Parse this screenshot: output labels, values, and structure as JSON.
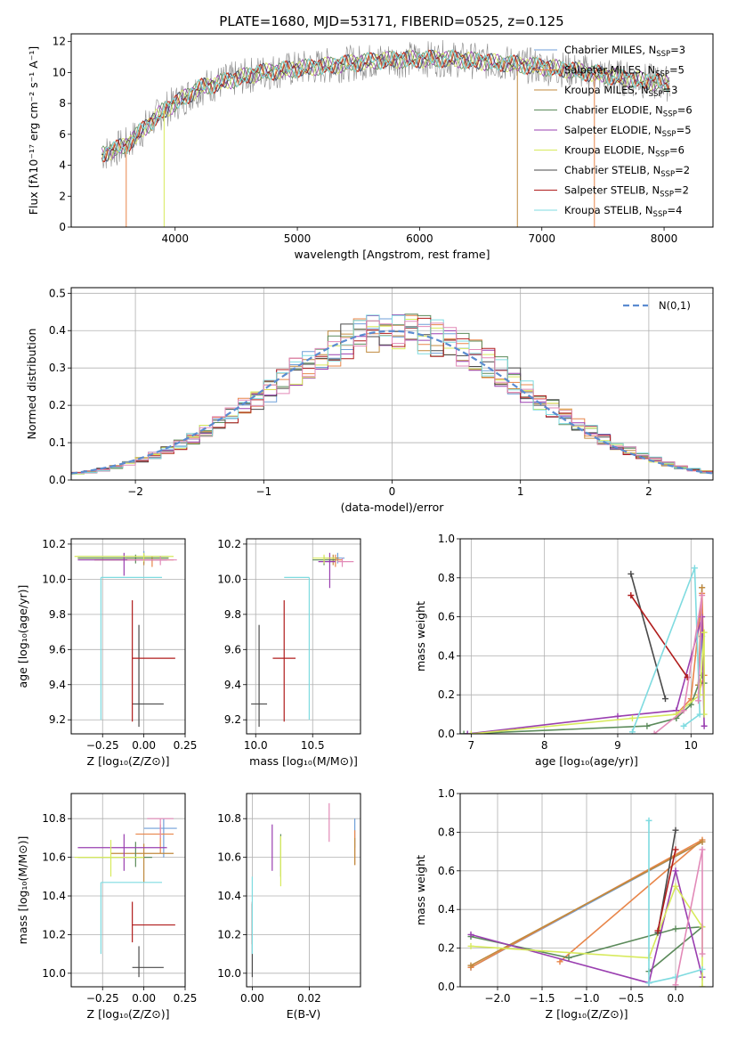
{
  "title": "PLATE=1680, MJD=53171, FIBERID=0525, z=0.125",
  "chart_data": [
    {
      "type": "line",
      "name": "spectrum",
      "xlabel": "wavelength [Angstrom, rest frame]",
      "ylabel": "Flux [fλ10⁻¹⁷ erg cm⁻² s⁻¹ A⁻¹]",
      "xlim": [
        3150,
        8400
      ],
      "ylim": [
        0,
        12.5
      ],
      "xticks": [
        4000,
        5000,
        6000,
        7000,
        8000
      ],
      "yticks": [
        0,
        2,
        4,
        6,
        8,
        10,
        12
      ],
      "continuum": {
        "x": [
          3400,
          3600,
          3900,
          4200,
          4700,
          5200,
          5700,
          6200,
          6700,
          7200,
          7700,
          8000
        ],
        "y": [
          4.7,
          5.3,
          7.5,
          9.0,
          10.0,
          10.4,
          10.8,
          10.9,
          10.6,
          10.2,
          9.6,
          9.3
        ]
      },
      "glitches": [
        {
          "x": 3600,
          "y": 0
        },
        {
          "x": 3910,
          "y": 0
        },
        {
          "x": 6800,
          "y": 0
        },
        {
          "x": 7430,
          "y": 0
        }
      ],
      "series": [
        {
          "name": "Chabrier MILES, N",
          "sub": "SSP",
          "eq": "=3",
          "color": "#6f9fd8"
        },
        {
          "name": "Salpeter MILES, N",
          "sub": "SSP",
          "eq": "=5",
          "color": "#e8864a"
        },
        {
          "name": "Kroupa MILES, N",
          "sub": "SSP",
          "eq": "=3",
          "color": "#c08a3e"
        },
        {
          "name": "Chabrier ELODIE, N",
          "sub": "SSP",
          "eq": "=6",
          "color": "#5b8a5a"
        },
        {
          "name": "Salpeter ELODIE, N",
          "sub": "SSP",
          "eq": "=5",
          "color": "#9a3fb0"
        },
        {
          "name": "Kroupa ELODIE, N",
          "sub": "SSP",
          "eq": "=6",
          "color": "#d7ea5c"
        },
        {
          "name": "Chabrier STELIB, N",
          "sub": "SSP",
          "eq": "=2",
          "color": "#4a4a4a"
        },
        {
          "name": "Salpeter STELIB, N",
          "sub": "SSP",
          "eq": "=2",
          "color": "#b01c1c"
        },
        {
          "name": "Kroupa STELIB, N",
          "sub": "SSP",
          "eq": "=4",
          "color": "#7fdbe0"
        }
      ]
    },
    {
      "type": "line",
      "name": "residual-histogram",
      "xlabel": "(data-model)/error",
      "ylabel": "Normed distribution",
      "xlim": [
        -2.5,
        2.5
      ],
      "ylim": [
        0,
        0.515
      ],
      "xticks": [
        -2,
        -1,
        0,
        1,
        2
      ],
      "yticks": [
        0.0,
        0.1,
        0.2,
        0.3,
        0.4,
        0.5
      ],
      "legend": "N(0,1)",
      "legend_position": "top-right",
      "bin_width": 0.1,
      "hist_base": [
        0.018,
        0.022,
        0.028,
        0.035,
        0.044,
        0.054,
        0.066,
        0.079,
        0.094,
        0.11,
        0.13,
        0.15,
        0.171,
        0.194,
        0.218,
        0.242,
        0.266,
        0.29,
        0.312,
        0.333,
        0.352,
        0.368,
        0.382,
        0.392,
        0.398,
        0.4,
        0.398,
        0.392,
        0.382,
        0.368,
        0.352,
        0.333,
        0.312,
        0.29,
        0.266,
        0.242,
        0.218,
        0.194,
        0.171,
        0.15,
        0.13,
        0.11,
        0.094,
        0.079,
        0.066,
        0.054,
        0.044,
        0.035,
        0.028,
        0.022
      ]
    },
    {
      "type": "scatter",
      "name": "age-vs-Z",
      "xlabel": "Z [log₁₀(Z/Z⊙)]",
      "ylabel": "age  [log₁₀(age/yr)]",
      "xlim": [
        -0.44,
        0.25
      ],
      "ylim": [
        9.12,
        10.23
      ],
      "xticks": [
        -0.25,
        0.0,
        0.25
      ],
      "yticks": [
        9.2,
        9.4,
        9.6,
        9.8,
        10.0,
        10.2
      ],
      "points": [
        {
          "x": 0.0,
          "y": 10.13,
          "xl": 0.4,
          "xh": 0.15,
          "yl": 0.04,
          "yh": 0.03,
          "c": 0
        },
        {
          "x": 0.05,
          "y": 10.11,
          "xl": 0.35,
          "xh": 0.13,
          "yl": 0.04,
          "yh": 0.02,
          "c": 1
        },
        {
          "x": 0.0,
          "y": 10.12,
          "xl": 0.4,
          "xh": 0.15,
          "yl": 0.04,
          "yh": 0.02,
          "c": 2
        },
        {
          "x": -0.05,
          "y": 10.12,
          "xl": 0.35,
          "xh": 0.2,
          "yl": 0.03,
          "yh": 0.02,
          "c": 3
        },
        {
          "x": -0.12,
          "y": 10.11,
          "xl": 0.28,
          "xh": 0.26,
          "yl": 0.09,
          "yh": 0.04,
          "c": 4
        },
        {
          "x": 0.0,
          "y": 10.13,
          "xl": 0.42,
          "xh": 0.18,
          "yl": 0.03,
          "yh": 0.02,
          "c": 5
        },
        {
          "x": -0.03,
          "y": 9.29,
          "xl": 0.04,
          "xh": 0.15,
          "yl": 0.13,
          "yh": 0.45,
          "c": 6
        },
        {
          "x": -0.07,
          "y": 9.55,
          "xl": 0.0,
          "xh": 0.26,
          "yl": 0.36,
          "yh": 0.33,
          "c": 7
        },
        {
          "x": -0.26,
          "y": 10.01,
          "xl": 0.0,
          "xh": 0.37,
          "yl": 0.81,
          "yh": 0.0,
          "c": 8
        },
        {
          "x": 0.1,
          "y": 10.11,
          "xl": 0.2,
          "xh": 0.1,
          "yl": 0.03,
          "yh": 0.02,
          "c": 9
        }
      ]
    },
    {
      "type": "scatter",
      "name": "age-vs-mass",
      "xlabel": "mass [log₁₀(M/M⊙)]",
      "xlim": [
        9.92,
        10.92
      ],
      "ylim": [
        9.12,
        10.23
      ],
      "xticks": [
        10.0,
        10.5
      ],
      "yticks": [
        9.2,
        9.4,
        9.6,
        9.8,
        10.0,
        10.2
      ],
      "points": [
        {
          "x": 10.72,
          "y": 10.12,
          "xl": 0.1,
          "xh": 0.06,
          "yl": 0.03,
          "yh": 0.03,
          "c": 0
        },
        {
          "x": 10.7,
          "y": 10.11,
          "xl": 0.05,
          "xh": 0.06,
          "yl": 0.04,
          "yh": 0.03,
          "c": 1
        },
        {
          "x": 10.68,
          "y": 10.12,
          "xl": 0.08,
          "xh": 0.05,
          "yl": 0.04,
          "yh": 0.02,
          "c": 2
        },
        {
          "x": 10.6,
          "y": 10.11,
          "xl": 0.1,
          "xh": 0.1,
          "yl": 0.03,
          "yh": 0.02,
          "c": 3
        },
        {
          "x": 10.65,
          "y": 10.1,
          "xl": 0.1,
          "xh": 0.05,
          "yl": 0.15,
          "yh": 0.05,
          "c": 4
        },
        {
          "x": 10.6,
          "y": 10.12,
          "xl": 0.1,
          "xh": 0.1,
          "yl": 0.03,
          "yh": 0.02,
          "c": 5
        },
        {
          "x": 10.03,
          "y": 9.29,
          "xl": 0.07,
          "xh": 0.07,
          "yl": 0.13,
          "yh": 0.45,
          "c": 6
        },
        {
          "x": 10.25,
          "y": 9.55,
          "xl": 0.1,
          "xh": 0.1,
          "yl": 0.36,
          "yh": 0.33,
          "c": 7
        },
        {
          "x": 10.47,
          "y": 10.01,
          "xl": 0.22,
          "xh": 0.0,
          "yl": 0.81,
          "yh": 0.0,
          "c": 8
        },
        {
          "x": 10.76,
          "y": 10.1,
          "xl": 0.04,
          "xh": 0.1,
          "yl": 0.03,
          "yh": 0.02,
          "c": 9
        }
      ]
    },
    {
      "type": "line",
      "name": "mass-weight-vs-age",
      "xlabel": "age  [log₁₀(age/yr)]",
      "ylabel": "mass weight",
      "xlim": [
        6.85,
        10.3
      ],
      "ylim": [
        0,
        1.0
      ],
      "xticks": [
        7,
        8,
        9,
        10
      ],
      "yticks": [
        0.0,
        0.2,
        0.4,
        0.6,
        0.8,
        1.0
      ],
      "lines": [
        {
          "c": 0,
          "x": [
            10.15,
            10.15,
            10.1
          ],
          "y": [
            0.75,
            0.5,
            0.25
          ]
        },
        {
          "c": 1,
          "x": [
            9.8,
            10.0,
            10.15,
            10.18,
            10.1
          ],
          "y": [
            0.1,
            0.18,
            0.72,
            0.3,
            0.2
          ]
        },
        {
          "c": 2,
          "x": [
            10.15,
            10.1
          ],
          "y": [
            0.75,
            0.25
          ]
        },
        {
          "c": 3,
          "x": [
            6.9,
            9.4,
            9.8,
            10.0,
            10.15,
            10.18
          ],
          "y": [
            0.0,
            0.04,
            0.08,
            0.15,
            0.3,
            0.26
          ]
        },
        {
          "c": 4,
          "x": [
            6.95,
            9.0,
            9.8,
            10.15,
            10.18
          ],
          "y": [
            0.0,
            0.09,
            0.12,
            0.6,
            0.04
          ]
        },
        {
          "c": 5,
          "x": [
            7.0,
            9.2,
            9.8,
            10.12,
            10.18,
            10.18
          ],
          "y": [
            0.0,
            0.08,
            0.1,
            0.2,
            0.52,
            0.1
          ]
        },
        {
          "c": 6,
          "x": [
            9.18,
            9.65
          ],
          "y": [
            0.82,
            0.18
          ]
        },
        {
          "c": 7,
          "x": [
            9.18,
            9.95
          ],
          "y": [
            0.71,
            0.29
          ]
        },
        {
          "c": 8,
          "x": [
            9.2,
            10.05,
            10.12,
            9.9
          ],
          "y": [
            0.01,
            0.85,
            0.1,
            0.04
          ]
        },
        {
          "c": 9,
          "x": [
            9.5,
            9.9,
            10.15,
            10.1
          ],
          "y": [
            0.0,
            0.12,
            0.71,
            0.17
          ]
        }
      ]
    },
    {
      "type": "scatter",
      "name": "mass-vs-Z",
      "xlabel": "Z [log₁₀(Z/Z⊙)]",
      "ylabel": "mass [log₁₀(M/M⊙)]",
      "xlim": [
        -0.44,
        0.25
      ],
      "ylim": [
        9.93,
        10.93
      ],
      "xticks": [
        -0.25,
        0.0,
        0.25
      ],
      "yticks": [
        10.0,
        10.2,
        10.4,
        10.6,
        10.8
      ],
      "points": [
        {
          "x": 0.12,
          "y": 10.75,
          "xl": 0.12,
          "xh": 0.08,
          "yl": 0.15,
          "yh": 0.05,
          "c": 0
        },
        {
          "x": 0.1,
          "y": 10.72,
          "xl": 0.15,
          "xh": 0.08,
          "yl": 0.1,
          "yh": 0.05,
          "c": 1
        },
        {
          "x": 0.0,
          "y": 10.62,
          "xl": 0.2,
          "xh": 0.18,
          "yl": 0.15,
          "yh": 0.05,
          "c": 2
        },
        {
          "x": -0.05,
          "y": 10.6,
          "xl": 0.35,
          "xh": 0.1,
          "yl": 0.05,
          "yh": 0.08,
          "c": 3
        },
        {
          "x": -0.12,
          "y": 10.65,
          "xl": 0.28,
          "xh": 0.26,
          "yl": 0.12,
          "yh": 0.07,
          "c": 4
        },
        {
          "x": -0.2,
          "y": 10.6,
          "xl": 0.22,
          "xh": 0.2,
          "yl": 0.1,
          "yh": 0.09,
          "c": 5
        },
        {
          "x": -0.03,
          "y": 10.03,
          "xl": 0.04,
          "xh": 0.15,
          "yl": 0.05,
          "yh": 0.11,
          "c": 6
        },
        {
          "x": -0.07,
          "y": 10.25,
          "xl": 0.0,
          "xh": 0.26,
          "yl": 0.09,
          "yh": 0.12,
          "c": 7
        },
        {
          "x": -0.26,
          "y": 10.47,
          "xl": 0.0,
          "xh": 0.37,
          "yl": 0.37,
          "yh": 0.0,
          "c": 8
        },
        {
          "x": 0.1,
          "y": 10.8,
          "xl": 0.08,
          "xh": 0.08,
          "yl": 0.1,
          "yh": 0.0,
          "c": 9
        }
      ]
    },
    {
      "type": "scatter",
      "name": "mass-vs-EBV",
      "xlabel": "E(B-V)",
      "xlim": [
        -0.002,
        0.038
      ],
      "ylim": [
        9.93,
        10.93
      ],
      "xticks": [
        0.0,
        0.02
      ],
      "yticks": [
        10.0,
        10.2,
        10.4,
        10.6,
        10.8
      ],
      "points": [
        {
          "x": 0.036,
          "y": 10.75,
          "xl": 0,
          "xh": 0,
          "yl": 0.1,
          "yh": 0.05,
          "c": 0
        },
        {
          "x": 0.036,
          "y": 10.66,
          "xl": 0,
          "xh": 0,
          "yl": 0.1,
          "yh": 0.08,
          "c": 1
        },
        {
          "x": 0.036,
          "y": 10.64,
          "xl": 0,
          "xh": 0,
          "yl": 0.08,
          "yh": 0.06,
          "c": 2
        },
        {
          "x": 0.01,
          "y": 10.62,
          "xl": 0,
          "xh": 0,
          "yl": 0.12,
          "yh": 0.1,
          "c": 3
        },
        {
          "x": 0.007,
          "y": 10.65,
          "xl": 0,
          "xh": 0,
          "yl": 0.12,
          "yh": 0.12,
          "c": 4
        },
        {
          "x": 0.01,
          "y": 10.55,
          "xl": 0,
          "xh": 0,
          "yl": 0.1,
          "yh": 0.16,
          "c": 5
        },
        {
          "x": 0.0,
          "y": 10.15,
          "xl": 0,
          "xh": 0,
          "yl": 0.17,
          "yh": 0.21,
          "c": 6
        },
        {
          "x": 0.0,
          "y": 10.25,
          "xl": 0,
          "xh": 0,
          "yl": 0.1,
          "yh": 0.12,
          "c": 7
        },
        {
          "x": 0.0,
          "y": 10.4,
          "xl": 0,
          "xh": 0,
          "yl": 0.3,
          "yh": 0.1,
          "c": 8
        },
        {
          "x": 0.027,
          "y": 10.8,
          "xl": 0,
          "xh": 0,
          "yl": 0.12,
          "yh": 0.08,
          "c": 9
        }
      ]
    },
    {
      "type": "line",
      "name": "mass-weight-vs-Z",
      "xlabel": "Z [log₁₀(Z/Z⊙)]",
      "ylabel": "mass weight",
      "xlim": [
        -2.42,
        0.42
      ],
      "ylim": [
        0,
        1.0
      ],
      "xticks": [
        -2.0,
        -1.5,
        -1.0,
        -0.5,
        0.0
      ],
      "yticks": [
        0.0,
        0.2,
        0.4,
        0.6,
        0.8,
        1.0
      ],
      "lines": [
        {
          "c": 0,
          "x": [
            0.3,
            -2.3
          ],
          "y": [
            0.75,
            0.1
          ]
        },
        {
          "c": 1,
          "x": [
            -2.3,
            0.3,
            -1.3
          ],
          "y": [
            0.1,
            0.76,
            0.13
          ]
        },
        {
          "c": 2,
          "x": [
            0.3,
            -2.3
          ],
          "y": [
            0.75,
            0.11
          ]
        },
        {
          "c": 3,
          "x": [
            -2.3,
            -1.2,
            0.0,
            0.3,
            -0.3
          ],
          "y": [
            0.26,
            0.15,
            0.3,
            0.31,
            0.08
          ]
        },
        {
          "c": 4,
          "x": [
            -2.3,
            -0.3,
            0.0,
            0.3
          ],
          "y": [
            0.27,
            0.02,
            0.6,
            0.05
          ]
        },
        {
          "c": 5,
          "x": [
            -2.3,
            -0.3,
            0.0,
            0.3,
            0.3
          ],
          "y": [
            0.21,
            0.15,
            0.52,
            0.31,
            0.0
          ]
        },
        {
          "c": 6,
          "x": [
            -0.2,
            0.0
          ],
          "y": [
            0.28,
            0.81
          ]
        },
        {
          "c": 7,
          "x": [
            -0.2,
            0.0
          ],
          "y": [
            0.29,
            0.71
          ]
        },
        {
          "c": 8,
          "x": [
            -0.3,
            -0.3,
            0.0,
            0.3
          ],
          "y": [
            0.86,
            0.02,
            0.05,
            0.09
          ]
        },
        {
          "c": 9,
          "x": [
            0.0,
            0.3,
            0.3
          ],
          "y": [
            0.01,
            0.71,
            0.17
          ]
        }
      ]
    }
  ],
  "colors": [
    "#6f9fd8",
    "#e8864a",
    "#c08a3e",
    "#5b8a5a",
    "#9a3fb0",
    "#d7ea5c",
    "#4a4a4a",
    "#b01c1c",
    "#7fdbe0",
    "#e28ab8"
  ]
}
